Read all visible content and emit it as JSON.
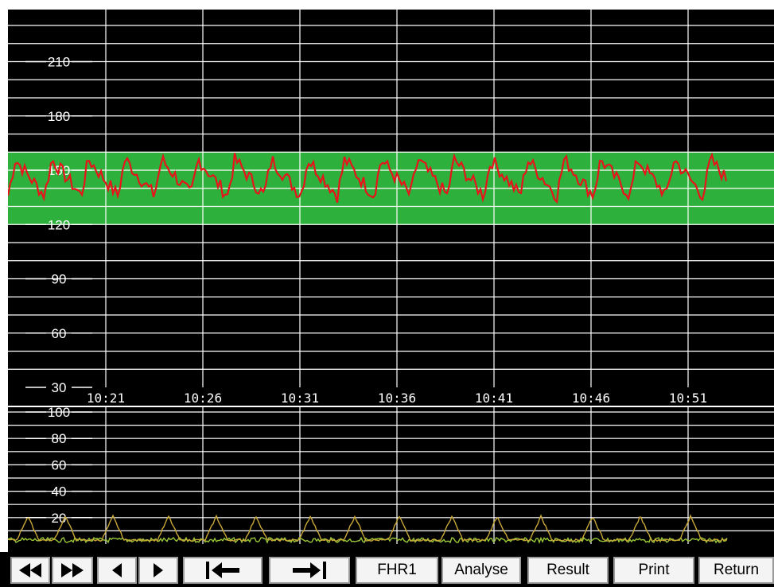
{
  "fhr_chart": {
    "y_axis": {
      "ticks": [
        "210",
        "180",
        "150",
        "120",
        "90",
        "60",
        "30"
      ],
      "range": [
        30,
        230
      ]
    },
    "x_axis": {
      "ticks": [
        "10:21",
        "10:26",
        "10:31",
        "10:36",
        "10:41",
        "10:46",
        "10:51"
      ]
    },
    "normal_band": [
      120,
      160
    ],
    "colors": {
      "background": "#000000",
      "grid": "#ffffff",
      "band": "#2eb03c",
      "trace": "#e8141c"
    }
  },
  "toco_chart": {
    "y_axis": {
      "ticks": [
        "100",
        "80",
        "60",
        "40",
        "20"
      ],
      "range": [
        0,
        100
      ]
    },
    "colors": {
      "trace": "#c8a838",
      "baseline": "#9ac838"
    }
  },
  "chart_data": [
    {
      "type": "line",
      "title": "",
      "xlabel": "",
      "ylabel": "",
      "ylim": [
        30,
        230
      ],
      "x_ticks": [
        "10:21",
        "10:26",
        "10:31",
        "10:36",
        "10:41",
        "10:46",
        "10:51"
      ],
      "y_ticks": [
        210,
        180,
        150,
        120,
        90,
        60,
        30
      ],
      "series": [
        {
          "values_summary": "FHR trace oscillating roughly between 135 and 155 bpm from about 10:17 to 10:55"
        }
      ]
    },
    {
      "type": "line",
      "title": "",
      "ylim": [
        0,
        100
      ],
      "y_ticks": [
        100,
        80,
        60,
        40,
        20
      ],
      "series": [
        {
          "values_summary": "Contraction peaks reaching about 20 at regular intervals near the baseline"
        }
      ]
    }
  ],
  "toolbar": {
    "rewind": "rewind",
    "fast_forward": "fast-forward",
    "step_back": "step-back",
    "step_forward": "step-forward",
    "to_start": "to-start",
    "to_end": "to-end",
    "fhr1_label": "FHR1",
    "analyse_label": "Analyse",
    "result_label": "Result",
    "print_label": "Print",
    "return_label": "Return"
  }
}
